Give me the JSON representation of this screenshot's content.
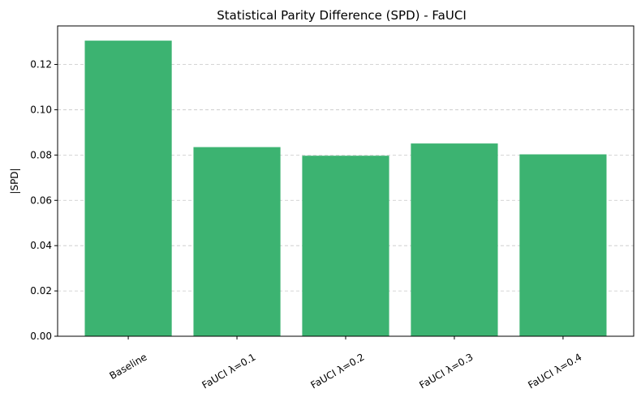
{
  "chart_data": {
    "type": "bar",
    "title": "Statistical Parity Difference (SPD) - FaUCI",
    "xlabel": "",
    "ylabel": "|SPD|",
    "categories": [
      "Baseline",
      "FaUCI λ=0.1",
      "FaUCI λ=0.2",
      "FaUCI λ=0.3",
      "FaUCI λ=0.4"
    ],
    "values": [
      0.1305,
      0.0835,
      0.0797,
      0.0851,
      0.0803
    ],
    "ylim": [
      0,
      0.137
    ],
    "yticks": [
      0.0,
      0.02,
      0.04,
      0.06,
      0.08,
      0.1,
      0.12
    ],
    "ytick_labels": [
      "0.00",
      "0.02",
      "0.04",
      "0.06",
      "0.08",
      "0.10",
      "0.12"
    ],
    "grid": {
      "y": true,
      "x": false,
      "style": "dashed"
    },
    "colors": {
      "bar": "#3cb371",
      "grid": "#c8c8c8",
      "axis": "#000000"
    }
  }
}
